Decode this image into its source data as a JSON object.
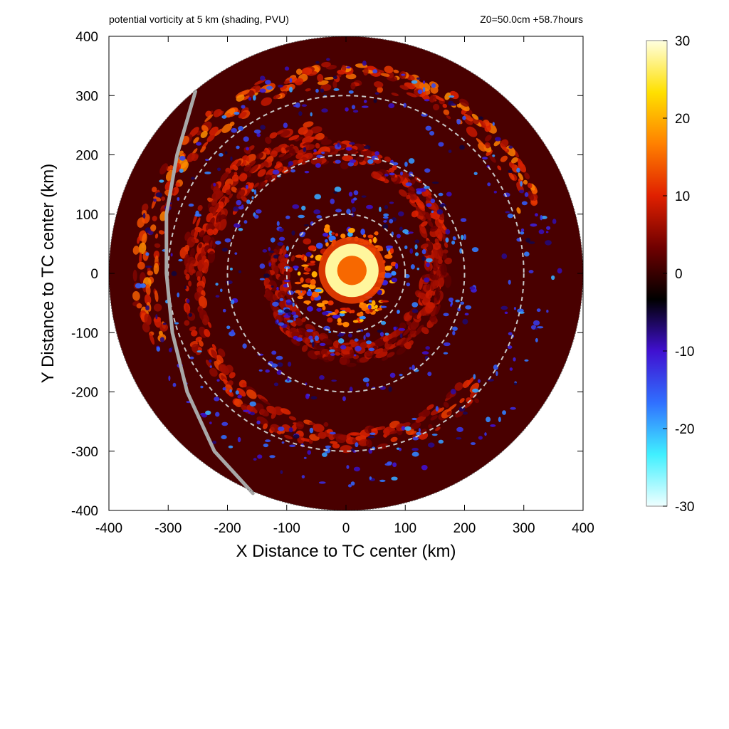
{
  "chart_data": {
    "type": "heatmap",
    "title_left": "potential vorticity at 5 km (shading, PVU)",
    "title_right": "Z0=50.0cm  +58.7hours",
    "xlabel": "X Distance to TC center (km)",
    "ylabel": "Y Distance to TC center (km)",
    "xlim": [
      -400,
      400
    ],
    "ylim": [
      -400,
      400
    ],
    "x_ticks": [
      -400,
      -300,
      -200,
      -100,
      0,
      100,
      200,
      300,
      400
    ],
    "y_ticks": [
      -400,
      -300,
      -200,
      -100,
      0,
      100,
      200,
      300,
      400
    ],
    "domain_radius_km": 400,
    "range_rings_km": [
      100,
      200,
      300
    ],
    "colorbar": {
      "min": -30,
      "max": 30,
      "ticks": [
        30,
        20,
        10,
        0,
        -10,
        -20,
        -30
      ],
      "colors": [
        "#f0ffff",
        "#40f0ff",
        "#3070ff",
        "#4010d0",
        "#000000",
        "#700000",
        "#e02000",
        "#ff8000",
        "#ffe000",
        "#ffffe0"
      ]
    },
    "track_line": {
      "color": "#a8a8a8",
      "points": [
        [
          -254,
          307
        ],
        [
          -285,
          200
        ],
        [
          -303,
          100
        ],
        [
          -303,
          0
        ],
        [
          -293,
          -100
        ],
        [
          -268,
          -200
        ],
        [
          -222,
          -300
        ],
        [
          -157,
          -371
        ]
      ]
    },
    "features": {
      "eye_core": {
        "x": 10,
        "y": 5,
        "radius": 45,
        "value": 28
      },
      "eyewall_ring": {
        "radius": 70,
        "value": 14
      },
      "rainbands": [
        {
          "start_r": 330,
          "end_r": 340,
          "sweep": [
            20,
            200
          ],
          "value": 10
        },
        {
          "start_r": 240,
          "end_r": 290,
          "sweep": [
            100,
            320
          ],
          "value": 7
        },
        {
          "start_r": 140,
          "end_r": 250,
          "sweep": [
            -20,
            180
          ],
          "value": 6
        },
        {
          "start_r": 110,
          "end_r": 160,
          "sweep": [
            160,
            380
          ],
          "value": 5
        }
      ],
      "negative_band_radii": [
        120,
        200,
        290,
        340
      ]
    }
  }
}
